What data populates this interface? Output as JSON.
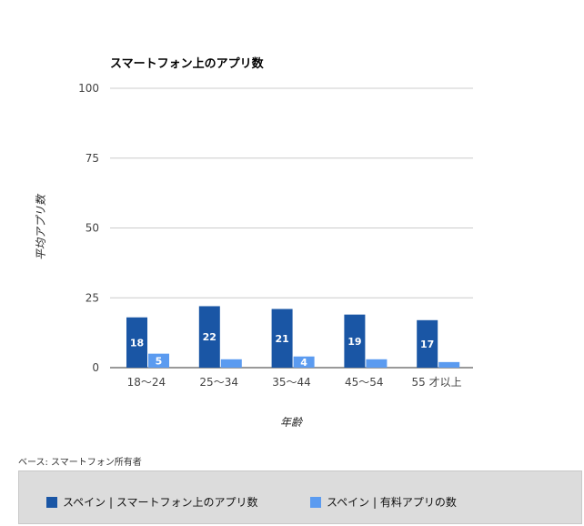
{
  "chart_data": {
    "type": "bar",
    "title": "スマートフォン上のアプリ数",
    "xlabel": "年齢",
    "ylabel": "平均アプリ数",
    "ylim": [
      0,
      100
    ],
    "yticks": [
      0,
      25,
      50,
      75,
      100
    ],
    "grid": true,
    "legend_position": "bottom",
    "categories": [
      "18〜24",
      "25〜34",
      "35〜44",
      "45〜54",
      "55 才以上"
    ],
    "series": [
      {
        "name": "スペイン | スマートフォン上のアプリ数",
        "color": "#1a56a5",
        "values": [
          18,
          22,
          21,
          19,
          17
        ],
        "labels": [
          "18",
          "22",
          "21",
          "19",
          "17"
        ]
      },
      {
        "name": "スペイン | 有料アプリの数",
        "color": "#5b9bf0",
        "values": [
          5,
          3,
          4,
          3,
          2
        ],
        "labels": [
          "5",
          "",
          "4",
          "",
          ""
        ]
      }
    ]
  },
  "note": "ベース: スマートフォン所有者"
}
